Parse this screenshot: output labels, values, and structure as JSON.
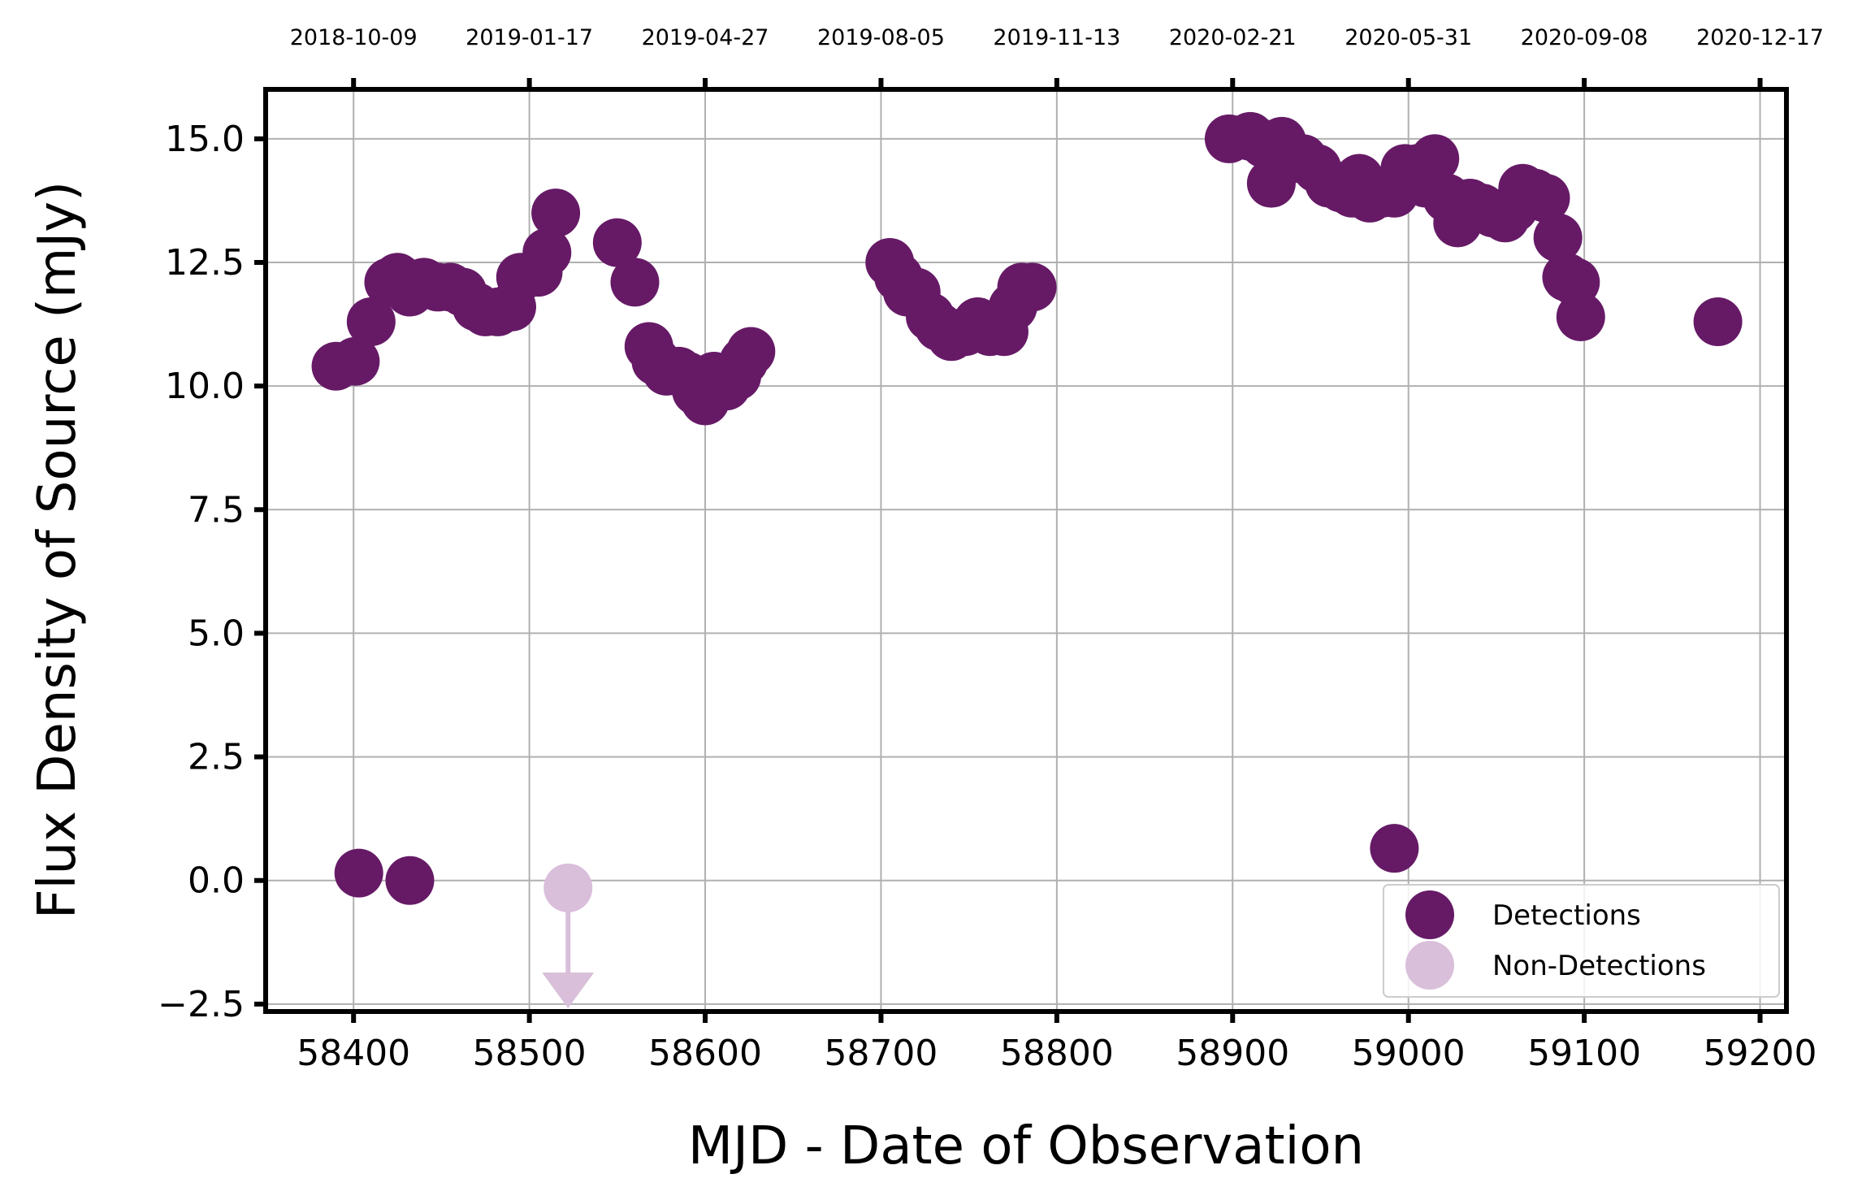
{
  "chart_data": {
    "type": "scatter",
    "title": "",
    "xlabel": "MJD - Date of Observation",
    "ylabel": "Flux Density of Source (mJy)",
    "xlim": [
      58350,
      59215
    ],
    "ylim": [
      -2.65,
      16
    ],
    "grid": true,
    "x_ticks": [
      58400,
      58500,
      58600,
      58700,
      58800,
      58900,
      59000,
      59100,
      59200
    ],
    "y_ticks": [
      -2.5,
      0.0,
      2.5,
      5.0,
      7.5,
      10.0,
      12.5,
      15.0
    ],
    "x_tick_labels": [
      "58400",
      "58500",
      "58600",
      "58700",
      "58800",
      "58900",
      "59000",
      "59100",
      "59200"
    ],
    "y_tick_labels": [
      "−2.5",
      "0.0",
      "2.5",
      "5.0",
      "7.5",
      "10.0",
      "12.5",
      "15.0"
    ],
    "top_axis": {
      "ticks": [
        58400,
        58500,
        58600,
        58700,
        58800,
        58900,
        59000,
        59100,
        59200
      ],
      "labels": [
        "2018-10-09",
        "2019-01-17",
        "2019-04-27",
        "2019-08-05",
        "2019-11-13",
        "2020-02-21",
        "2020-05-31",
        "2020-09-08",
        "2020-12-17"
      ]
    },
    "legend_position": "lower-right",
    "series": [
      {
        "name": "Detections",
        "color": "#661a66",
        "x": [
          58390,
          58401,
          58403,
          58410,
          58420,
          58425,
          58432,
          58440,
          58448,
          58455,
          58462,
          58470,
          58475,
          58482,
          58490,
          58495,
          58505,
          58510,
          58515,
          58432,
          58550,
          58560,
          58568,
          58572,
          58578,
          58585,
          58590,
          58595,
          58600,
          58605,
          58612,
          58618,
          58622,
          58626,
          58705,
          58710,
          58715,
          58720,
          58728,
          58733,
          58740,
          58748,
          58755,
          58762,
          58770,
          58775,
          58780,
          58786,
          58898,
          58910,
          58918,
          58922,
          58928,
          58935,
          58940,
          58948,
          58955,
          58962,
          58968,
          58972,
          58978,
          58985,
          58992,
          58998,
          59005,
          59010,
          59015,
          59022,
          59028,
          59035,
          59042,
          59048,
          59055,
          59060,
          59065,
          59072,
          59078,
          59085,
          59090,
          59095,
          59098,
          58992,
          59176
        ],
        "y": [
          10.4,
          10.5,
          0.15,
          11.3,
          12.1,
          12.2,
          11.9,
          12.1,
          12.0,
          12.0,
          11.9,
          11.6,
          11.5,
          11.5,
          11.6,
          12.2,
          12.3,
          12.7,
          13.5,
          0.0,
          12.9,
          12.1,
          10.8,
          10.5,
          10.3,
          10.3,
          10.2,
          9.9,
          9.7,
          10.2,
          10.0,
          10.2,
          10.5,
          10.7,
          12.5,
          12.2,
          11.9,
          11.9,
          11.4,
          11.2,
          11.0,
          11.1,
          11.3,
          11.1,
          11.1,
          11.6,
          12.0,
          12.0,
          15.0,
          15.05,
          14.9,
          14.1,
          14.95,
          14.6,
          14.6,
          14.4,
          14.1,
          14.0,
          13.9,
          14.2,
          13.8,
          13.9,
          13.9,
          14.4,
          14.4,
          14.1,
          14.6,
          13.8,
          13.3,
          13.7,
          13.6,
          13.5,
          13.4,
          13.6,
          14.0,
          13.9,
          13.8,
          13.0,
          12.2,
          12.1,
          11.4,
          0.65,
          11.3
        ]
      },
      {
        "name": "Non-Detections",
        "color": "#d9bfd9",
        "marker": "upper-limit",
        "x": [
          58522
        ],
        "y": [
          -0.15
        ]
      }
    ]
  }
}
